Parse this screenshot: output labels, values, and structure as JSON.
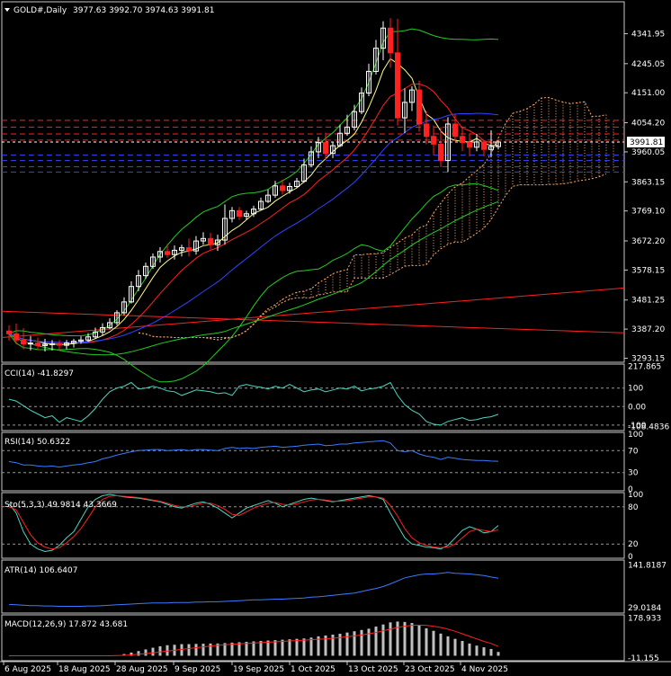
{
  "header": {
    "symbol": "GOLD#,Daily",
    "ohlc": "3977.63 3992.70 3974.63 3991.81"
  },
  "current_price_label": "3991.81",
  "colors": {
    "background": "#000000",
    "frame": "#c8c8c8",
    "bull": "#ffffff",
    "bear": "#ff2020",
    "bb": "#22cc22",
    "ma_fast": "#ffff88",
    "ma_mid": "#ff2020",
    "ma_slow": "#3344ff",
    "levels_red": "#ff2020",
    "levels_blue": "#3344ff",
    "cloud_up": "#ffaa66",
    "cci": "#4ad6c0",
    "rsi": "#3b7bff",
    "stoch_main": "#4ad6c0",
    "stoch_signal": "#ff2020",
    "atr": "#3b7bff",
    "macd_hist": "#c0c0c0",
    "macd_signal": "#ff2020"
  },
  "chart_data": [
    {
      "type": "candlestick",
      "title": "GOLD#,Daily",
      "x_labels": [
        "6 Aug 2025",
        "18 Aug 2025",
        "28 Aug 2025",
        "9 Sep 2025",
        "19 Sep 2025",
        "1 Oct 2025",
        "13 Oct 2025",
        "23 Oct 2025",
        "4 Nov 2025"
      ],
      "y_ticks": [
        "4341.95",
        "4245.05",
        "4151.00",
        "4054.20",
        "3960.05",
        "3863.15",
        "3769.10",
        "3672.20",
        "3578.15",
        "3481.25",
        "3387.20",
        "3293.15"
      ],
      "ylim": [
        3280,
        4445
      ],
      "open": [
        3381,
        3372,
        3352,
        3339,
        3342,
        3334,
        3338,
        3340,
        3335,
        3342,
        3348,
        3352,
        3362,
        3378,
        3392,
        3408,
        3440,
        3475,
        3525,
        3560,
        3590,
        3620,
        3638,
        3628,
        3642,
        3650,
        3640,
        3672,
        3680,
        3660,
        3675,
        3745,
        3770,
        3752,
        3760,
        3775,
        3800,
        3820,
        3850,
        3835,
        3848,
        3865,
        3918,
        3960,
        3990,
        3955,
        3980,
        4020,
        4040,
        4090,
        4150,
        4220,
        4295,
        4360,
        4280,
        4070,
        4120,
        4160,
        4050,
        4010,
        3985,
        3932,
        4050,
        4010,
        3990,
        3975,
        3992,
        3968,
        3977
      ],
      "high": [
        3400,
        3405,
        3390,
        3365,
        3360,
        3356,
        3352,
        3352,
        3352,
        3356,
        3364,
        3374,
        3392,
        3406,
        3422,
        3448,
        3490,
        3542,
        3578,
        3602,
        3632,
        3652,
        3662,
        3658,
        3660,
        3680,
        3688,
        3700,
        3698,
        3692,
        3790,
        3782,
        3782,
        3770,
        3786,
        3812,
        3838,
        3866,
        3870,
        3860,
        3876,
        3938,
        3978,
        4008,
        4022,
        3992,
        4048,
        4080,
        4112,
        4168,
        4245,
        4322,
        4382,
        4392,
        4390,
        4165,
        4172,
        4190,
        4092,
        4045,
        4040,
        4072,
        4082,
        4042,
        4020,
        4018,
        3996,
        4030,
        3998
      ],
      "low": [
        3350,
        3338,
        3322,
        3318,
        3320,
        3315,
        3318,
        3318,
        3322,
        3328,
        3340,
        3346,
        3355,
        3366,
        3386,
        3400,
        3432,
        3470,
        3510,
        3550,
        3582,
        3602,
        3618,
        3612,
        3622,
        3622,
        3628,
        3660,
        3645,
        3640,
        3660,
        3732,
        3740,
        3742,
        3750,
        3770,
        3795,
        3812,
        3822,
        3825,
        3842,
        3860,
        3910,
        3940,
        3935,
        3940,
        3975,
        4012,
        4030,
        4082,
        4140,
        4210,
        4256,
        4232,
        4045,
        4020,
        4092,
        4025,
        3985,
        3950,
        3910,
        3895,
        3995,
        3962,
        3945,
        3962,
        3945,
        3942,
        3968
      ],
      "close": [
        3372,
        3352,
        3339,
        3342,
        3334,
        3338,
        3340,
        3335,
        3342,
        3348,
        3352,
        3362,
        3378,
        3392,
        3408,
        3440,
        3475,
        3525,
        3560,
        3590,
        3620,
        3638,
        3628,
        3642,
        3650,
        3640,
        3672,
        3680,
        3660,
        3675,
        3745,
        3770,
        3752,
        3760,
        3775,
        3800,
        3820,
        3850,
        3835,
        3848,
        3865,
        3918,
        3960,
        3990,
        3955,
        3980,
        4020,
        4040,
        4090,
        4150,
        4220,
        4295,
        4360,
        4280,
        4070,
        4120,
        4160,
        4050,
        4010,
        3985,
        3932,
        4050,
        4010,
        3990,
        3975,
        3992,
        3968,
        3977,
        3991.81
      ],
      "horizontal_levels_red": [
        4062,
        4040,
        4018,
        3998
      ],
      "horizontal_levels_blue": [
        3950,
        3932,
        3912,
        3895
      ]
    },
    {
      "type": "line",
      "name": "CCI",
      "label": "CCI(14) -41.8297",
      "y_ticks": [
        "217.865",
        "100",
        "0.00",
        "-100",
        "-108.4836"
      ],
      "ylim": [
        -120,
        220
      ],
      "values": [
        40,
        30,
        5,
        -20,
        -40,
        -60,
        -50,
        -85,
        -60,
        -70,
        -80,
        -50,
        -10,
        40,
        80,
        100,
        110,
        130,
        95,
        100,
        110,
        100,
        85,
        80,
        60,
        75,
        90,
        85,
        80,
        70,
        75,
        60,
        110,
        120,
        110,
        105,
        95,
        110,
        100,
        120,
        100,
        80,
        90,
        95,
        80,
        90,
        100,
        95,
        110,
        85,
        95,
        100,
        110,
        130,
        60,
        10,
        -20,
        -40,
        -80,
        -95,
        -100,
        -80,
        -70,
        -60,
        -75,
        -70,
        -60,
        -55,
        -42
      ],
      "refs": [
        100,
        0,
        -100
      ]
    },
    {
      "type": "line",
      "name": "RSI",
      "label": "RSI(14) 50.6322",
      "y_ticks": [
        "100",
        "70",
        "30",
        "0"
      ],
      "ylim": [
        0,
        100
      ],
      "values": [
        50,
        48,
        44,
        44,
        42,
        41,
        42,
        40,
        42,
        44,
        45,
        48,
        50,
        55,
        58,
        62,
        65,
        68,
        70,
        71,
        72,
        72,
        70,
        71,
        72,
        70,
        72,
        72,
        71,
        70,
        74,
        76,
        74,
        75,
        74,
        76,
        77,
        78,
        76,
        77,
        78,
        80,
        81,
        82,
        79,
        80,
        82,
        82,
        84,
        85,
        86,
        87,
        88,
        84,
        70,
        68,
        70,
        64,
        60,
        58,
        54,
        58,
        56,
        54,
        53,
        52,
        52,
        51,
        50.6
      ],
      "refs": [
        70,
        30
      ]
    },
    {
      "type": "line",
      "name": "Stochastic",
      "label": "Sto(5,3,3) 49.9814 43.3669",
      "y_ticks": [
        "100",
        "80",
        "20",
        "0"
      ],
      "ylim": [
        0,
        100
      ],
      "main": [
        85,
        70,
        40,
        20,
        12,
        8,
        10,
        18,
        30,
        40,
        60,
        80,
        92,
        98,
        100,
        98,
        96,
        95,
        94,
        92,
        90,
        88,
        84,
        80,
        78,
        82,
        86,
        88,
        84,
        78,
        70,
        62,
        70,
        78,
        82,
        86,
        90,
        86,
        80,
        84,
        88,
        92,
        94,
        92,
        90,
        88,
        90,
        92,
        94,
        96,
        98,
        96,
        92,
        70,
        50,
        30,
        20,
        18,
        15,
        14,
        12,
        18,
        30,
        42,
        48,
        44,
        38,
        40,
        50
      ],
      "signal": [
        80,
        75,
        55,
        35,
        22,
        15,
        12,
        14,
        22,
        32,
        45,
        62,
        80,
        92,
        97,
        98,
        97,
        96,
        95,
        93,
        91,
        89,
        86,
        82,
        80,
        80,
        83,
        86,
        86,
        82,
        76,
        68,
        66,
        72,
        78,
        82,
        86,
        87,
        84,
        83,
        85,
        88,
        91,
        92,
        91,
        89,
        89,
        90,
        92,
        94,
        96,
        96,
        94,
        82,
        65,
        45,
        30,
        22,
        18,
        15,
        14,
        15,
        20,
        30,
        40,
        44,
        42,
        40,
        43
      ],
      "refs": [
        80,
        20
      ]
    },
    {
      "type": "line",
      "name": "ATR",
      "label": "ATR(14) 106.6407",
      "y_ticks": [
        "141.8187",
        "29.0184"
      ],
      "ylim": [
        20,
        150
      ],
      "values": [
        38,
        37,
        36,
        35,
        35,
        34,
        34,
        33,
        33,
        33,
        33,
        34,
        34,
        35,
        36,
        37,
        38,
        39,
        40,
        41,
        42,
        42,
        42,
        43,
        43,
        43,
        44,
        44,
        45,
        45,
        46,
        47,
        48,
        49,
        50,
        50,
        51,
        52,
        52,
        53,
        54,
        55,
        57,
        58,
        60,
        62,
        64,
        66,
        68,
        72,
        76,
        80,
        85,
        92,
        100,
        108,
        112,
        116,
        118,
        118,
        120,
        122,
        120,
        119,
        118,
        116,
        114,
        110,
        107
      ],
      "refs": []
    },
    {
      "type": "bar",
      "name": "MACD",
      "label": "MACD(12,26,9) 17.872 43.681",
      "y_ticks": [
        "178.933",
        "-11.155"
      ],
      "ylim": [
        -15,
        185
      ],
      "histogram": [
        0,
        0,
        0,
        0,
        0,
        0,
        0,
        0,
        0,
        0,
        0,
        0,
        0,
        0,
        0,
        2,
        8,
        15,
        22,
        30,
        38,
        45,
        50,
        52,
        55,
        55,
        56,
        57,
        58,
        58,
        60,
        62,
        64,
        66,
        68,
        70,
        72,
        74,
        76,
        78,
        80,
        82,
        86,
        92,
        96,
        100,
        104,
        110,
        116,
        122,
        128,
        138,
        148,
        158,
        162,
        160,
        155,
        145,
        130,
        118,
        105,
        92,
        80,
        70,
        58,
        48,
        40,
        32,
        18
      ],
      "signal": [
        0,
        0,
        0,
        0,
        0,
        0,
        0,
        0,
        0,
        0,
        0,
        0,
        0,
        0,
        0,
        1,
        2,
        4,
        7,
        10,
        14,
        18,
        22,
        26,
        30,
        34,
        38,
        42,
        46,
        50,
        52,
        54,
        56,
        58,
        60,
        62,
        64,
        66,
        68,
        70,
        72,
        74,
        76,
        78,
        80,
        83,
        86,
        90,
        94,
        98,
        104,
        110,
        118,
        126,
        134,
        140,
        144,
        145,
        144,
        140,
        134,
        126,
        116,
        104,
        92,
        80,
        68,
        58,
        44
      ],
      "refs": []
    }
  ]
}
